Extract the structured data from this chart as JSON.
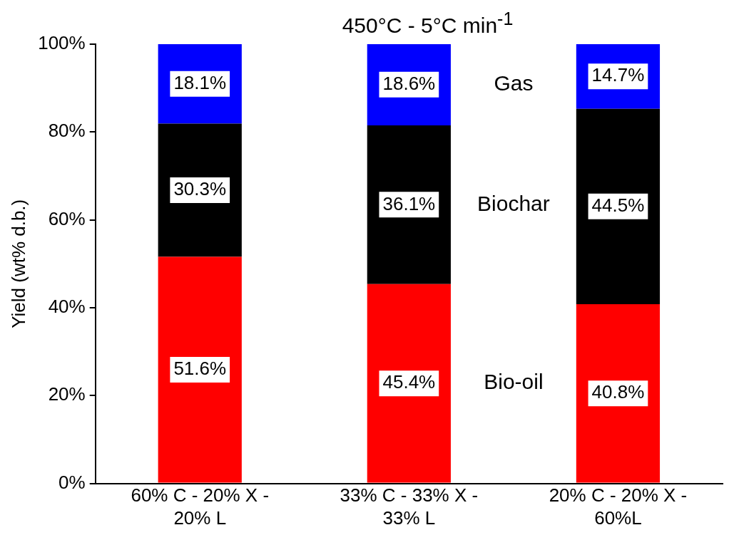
{
  "chart_data": {
    "type": "bar",
    "title": "450°C - 5°C min$^{-1}$",
    "ylabel": "Yield (wt% d.b.)",
    "categories": [
      "60% C - 20% X - 20% L",
      "33% C - 33% X - 33% L",
      "20% C - 20% X - 60%L"
    ],
    "stacked": true,
    "data_labels": true,
    "grid": false,
    "legend": false,
    "ylim": [
      0,
      100
    ],
    "yticks": [
      {
        "value": 0,
        "label": "0%"
      },
      {
        "value": 20,
        "label": "20%"
      },
      {
        "value": 40,
        "label": "40%"
      },
      {
        "value": 60,
        "label": "60%"
      },
      {
        "value": 80,
        "label": "80%"
      },
      {
        "value": 100,
        "label": "100%"
      }
    ],
    "series": [
      {
        "name": "Bio-oil",
        "color": "#ff0000",
        "values": [
          51.6,
          45.4,
          40.8
        ],
        "value_labels": [
          "51.6%",
          "45.4%",
          "40.8%"
        ]
      },
      {
        "name": "Biochar",
        "color": "#000000",
        "values": [
          30.3,
          36.1,
          44.5
        ],
        "value_labels": [
          "30.3%",
          "36.1%",
          "44.5%"
        ]
      },
      {
        "name": "Gas",
        "color": "#0000ff",
        "values": [
          18.1,
          18.6,
          14.7
        ],
        "value_labels": [
          "18.1%",
          "18.6%",
          "14.7%"
        ]
      }
    ]
  }
}
